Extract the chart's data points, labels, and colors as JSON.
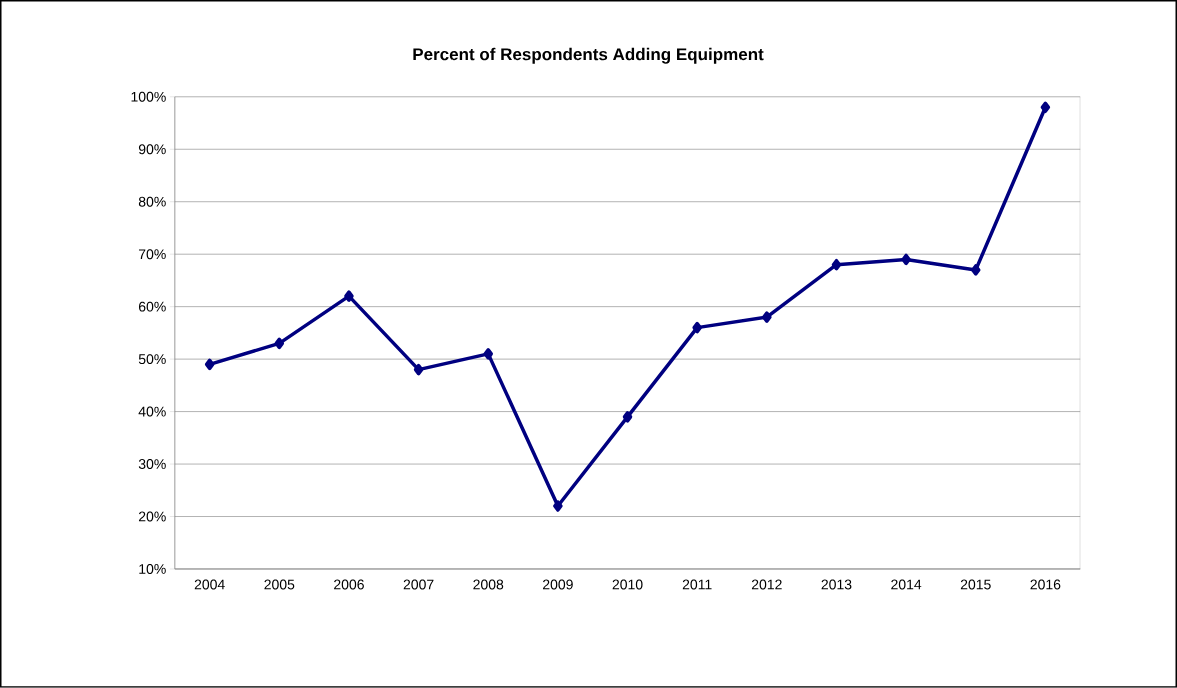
{
  "chart_data": {
    "type": "line",
    "title": "Percent of Respondents Adding Equipment",
    "categories": [
      "2004",
      "2005",
      "2006",
      "2007",
      "2008",
      "2009",
      "2010",
      "2011",
      "2012",
      "2013",
      "2014",
      "2015",
      "2016"
    ],
    "series": [
      {
        "color": "#000080",
        "values": [
          49,
          53,
          62,
          48,
          51,
          22,
          39,
          56,
          58,
          68,
          69,
          67,
          98
        ]
      }
    ],
    "ylim": [
      10,
      100
    ],
    "yticks": [
      {
        "value": 10,
        "label": "10%"
      },
      {
        "value": 20,
        "label": "20%"
      },
      {
        "value": 30,
        "label": "30%"
      },
      {
        "value": 40,
        "label": "40%"
      },
      {
        "value": 50,
        "label": "50%"
      },
      {
        "value": 60,
        "label": "60%"
      },
      {
        "value": 70,
        "label": "70%"
      },
      {
        "value": 80,
        "label": "80%"
      },
      {
        "value": 90,
        "label": "90%"
      },
      {
        "value": 100,
        "label": "100%"
      }
    ],
    "grid": "y",
    "marker": "diamond",
    "line_style": "solid"
  }
}
